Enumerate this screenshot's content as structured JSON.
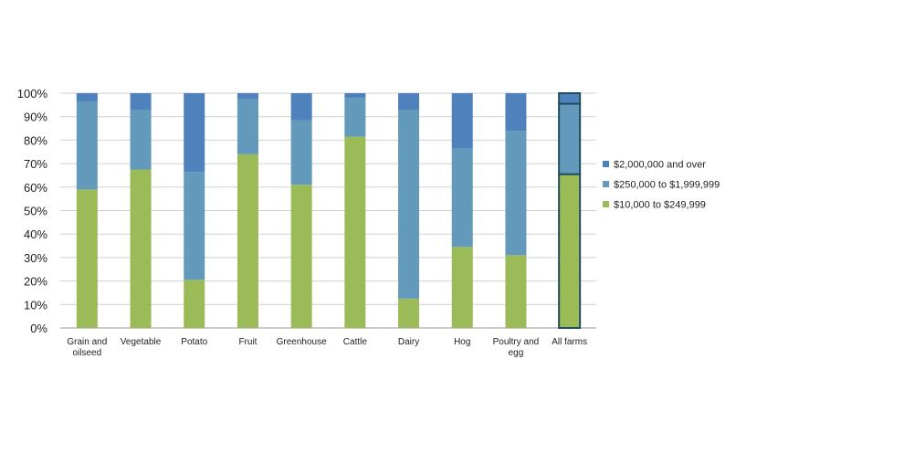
{
  "chart_data": {
    "type": "bar",
    "stacked": true,
    "percent": true,
    "title": "",
    "xlabel": "",
    "ylabel": "",
    "ylim": [
      0,
      100
    ],
    "y_ticks": [
      "0%",
      "10%",
      "20%",
      "30%",
      "40%",
      "50%",
      "60%",
      "70%",
      "80%",
      "90%",
      "100%"
    ],
    "grid": "horizontal",
    "legend_position": "right",
    "categories": [
      [
        "Grain and",
        "oilseed"
      ],
      [
        "Vegetable"
      ],
      [
        "Potato"
      ],
      [
        "Fruit"
      ],
      [
        "Greenhouse"
      ],
      [
        "Cattle"
      ],
      [
        "Dairy"
      ],
      [
        "Hog"
      ],
      [
        "Poultry and",
        "egg"
      ],
      [
        "All farms"
      ]
    ],
    "highlighted_category": "All farms",
    "series": [
      {
        "name": "$10,000 to $249,999",
        "color": "#9BBB59",
        "values": [
          59,
          67.5,
          20.5,
          74,
          61,
          81.5,
          12.5,
          34.5,
          31,
          65.5
        ]
      },
      {
        "name": "$250,000 to $1,999,999",
        "color": "#6399BB",
        "values": [
          37.5,
          25.5,
          46,
          23.5,
          27.5,
          16.5,
          80.5,
          42,
          53,
          30
        ]
      },
      {
        "name": "$2,000,000 and over",
        "color": "#4F81BD",
        "values": [
          3.5,
          7,
          33.5,
          2.5,
          11.5,
          2,
          7,
          23.5,
          16,
          4.5
        ]
      }
    ],
    "legend_order": [
      "$2,000,000 and over",
      "$250,000 to $1,999,999",
      "$10,000 to $249,999"
    ]
  }
}
